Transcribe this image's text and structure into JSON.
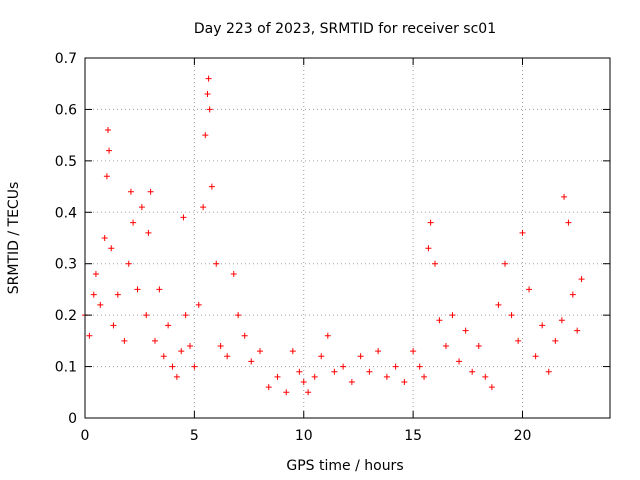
{
  "chart_data": {
    "type": "scatter",
    "title": "Day 223 of 2023, SRMTID for receiver sc01",
    "xlabel": "GPS time / hours",
    "ylabel": "SRMTID / TECUs",
    "xlim": [
      0,
      24
    ],
    "ylim": [
      0,
      0.7
    ],
    "x_ticks": [
      0,
      5,
      10,
      15,
      20
    ],
    "y_ticks": [
      0,
      0.1,
      0.2,
      0.3,
      0.4,
      0.5,
      0.6,
      0.7
    ],
    "grid": true,
    "marker": "+",
    "series": [
      {
        "name": "sc01",
        "color": "#ff0000",
        "x": [
          0.0,
          0.2,
          0.4,
          0.5,
          0.7,
          0.9,
          1.0,
          1.05,
          1.1,
          1.2,
          1.3,
          1.5,
          1.8,
          2.0,
          2.1,
          2.2,
          2.4,
          2.6,
          2.8,
          2.9,
          3.0,
          3.2,
          3.4,
          3.6,
          3.8,
          4.0,
          4.2,
          4.4,
          4.5,
          4.6,
          4.8,
          5.0,
          5.2,
          5.4,
          5.5,
          5.6,
          5.65,
          5.7,
          5.8,
          6.0,
          6.2,
          6.5,
          6.8,
          7.0,
          7.3,
          7.6,
          8.0,
          8.4,
          8.8,
          9.2,
          9.5,
          9.8,
          10.0,
          10.2,
          10.5,
          10.8,
          11.1,
          11.4,
          11.8,
          12.2,
          12.6,
          13.0,
          13.4,
          13.8,
          14.2,
          14.6,
          15.0,
          15.3,
          15.5,
          15.7,
          15.8,
          16.0,
          16.2,
          16.5,
          16.8,
          17.1,
          17.4,
          17.7,
          18.0,
          18.3,
          18.6,
          18.9,
          19.2,
          19.5,
          19.8,
          20.0,
          20.3,
          20.6,
          20.9,
          21.2,
          21.5,
          21.8,
          21.9,
          22.1,
          22.3,
          22.5,
          22.7
        ],
        "y": [
          0.2,
          0.16,
          0.24,
          0.28,
          0.22,
          0.35,
          0.47,
          0.56,
          0.52,
          0.33,
          0.18,
          0.24,
          0.15,
          0.3,
          0.44,
          0.38,
          0.25,
          0.41,
          0.2,
          0.36,
          0.44,
          0.15,
          0.25,
          0.12,
          0.18,
          0.1,
          0.08,
          0.13,
          0.39,
          0.2,
          0.14,
          0.1,
          0.22,
          0.41,
          0.55,
          0.63,
          0.66,
          0.6,
          0.45,
          0.3,
          0.14,
          0.12,
          0.28,
          0.2,
          0.16,
          0.11,
          0.13,
          0.06,
          0.08,
          0.05,
          0.13,
          0.09,
          0.07,
          0.05,
          0.08,
          0.12,
          0.16,
          0.09,
          0.1,
          0.07,
          0.12,
          0.09,
          0.13,
          0.08,
          0.1,
          0.07,
          0.13,
          0.1,
          0.08,
          0.33,
          0.38,
          0.3,
          0.19,
          0.14,
          0.2,
          0.11,
          0.17,
          0.09,
          0.14,
          0.08,
          0.06,
          0.22,
          0.3,
          0.2,
          0.15,
          0.36,
          0.25,
          0.12,
          0.18,
          0.09,
          0.15,
          0.19,
          0.43,
          0.38,
          0.24,
          0.17,
          0.27
        ]
      }
    ]
  }
}
